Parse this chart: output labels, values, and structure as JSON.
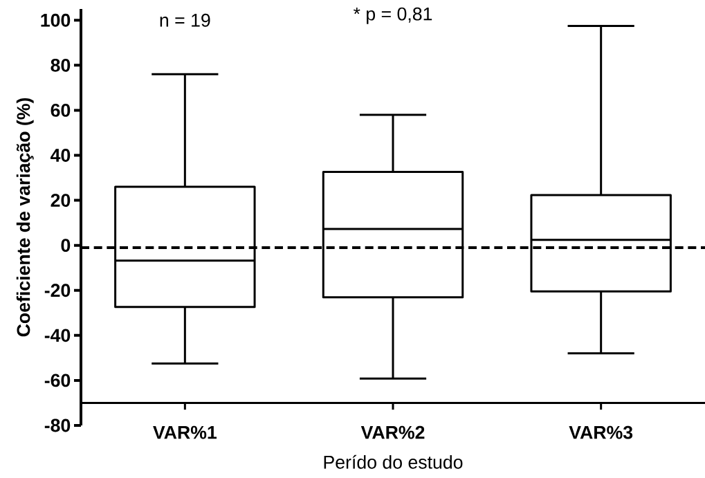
{
  "chart_data": {
    "type": "box",
    "categories": [
      "VAR%1",
      "VAR%2",
      "VAR%3"
    ],
    "boxes": [
      {
        "low": -52.5,
        "q1": -27.4,
        "median": -6.8,
        "q3": 26,
        "high": 76
      },
      {
        "low": -59.2,
        "q1": -23.1,
        "median": 7.3,
        "q3": 32.6,
        "high": 58
      },
      {
        "low": -48,
        "q1": -20.5,
        "median": 2.4,
        "q3": 22.3,
        "high": 97.5
      }
    ],
    "ylim": [
      -80,
      105
    ],
    "yticks": [
      -80,
      -60,
      -40,
      -20,
      0,
      20,
      40,
      60,
      80,
      100
    ],
    "ylabel": "Coeficiente de variação (%)",
    "xlabel": "Perído do estudo",
    "annotations": [
      "n = 19",
      "* p = 0,81"
    ],
    "ref_lines": [
      {
        "axis": "y",
        "value": -1,
        "line_style": "dashed",
        "color": "#000000"
      }
    ]
  }
}
